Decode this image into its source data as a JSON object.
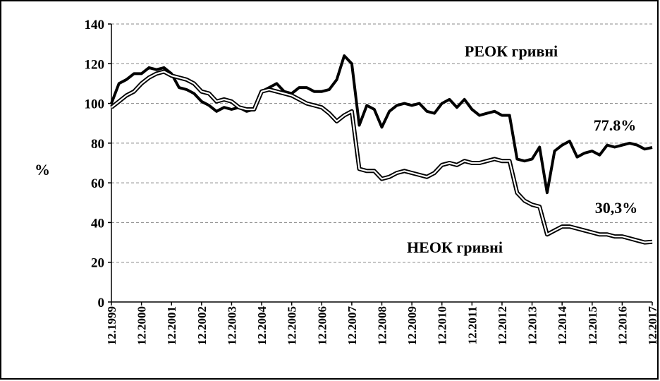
{
  "chart_data": {
    "type": "line",
    "y_label": "%",
    "annotations": [
      "РЕОК гривні",
      "НЕОК гривні",
      "77.8%",
      "30,3%"
    ],
    "categories": [
      "12.1999",
      "03.2000",
      "06.2000",
      "09.2000",
      "12.2000",
      "03.2001",
      "06.2001",
      "09.2001",
      "12.2001",
      "03.2002",
      "06.2002",
      "09.2002",
      "12.2002",
      "03.2003",
      "06.2003",
      "09.2003",
      "12.2003",
      "03.2004",
      "06.2004",
      "09.2004",
      "12.2004",
      "03.2005",
      "06.2005",
      "09.2005",
      "12.2005",
      "03.2006",
      "06.2006",
      "09.2006",
      "12.2006",
      "03.2007",
      "06.2007",
      "09.2007",
      "12.2007",
      "03.2008",
      "06.2008",
      "09.2008",
      "12.2008",
      "03.2009",
      "06.2009",
      "09.2009",
      "12.2009",
      "03.2010",
      "06.2010",
      "09.2010",
      "12.2010",
      "03.2011",
      "06.2011",
      "09.2011",
      "12.2011",
      "03.2012",
      "06.2012",
      "09.2012",
      "12.2012",
      "03.2013",
      "06.2013",
      "09.2013",
      "12.2013",
      "03.2014",
      "06.2014",
      "09.2014",
      "12.2014",
      "03.2015",
      "06.2015",
      "09.2015",
      "12.2015",
      "03.2016",
      "06.2016",
      "09.2016",
      "12.2016",
      "03.2017",
      "06.2017",
      "09.2017",
      "12.2017"
    ],
    "xticks": [
      "12.1999",
      "12.2000",
      "12.2001",
      "12.2002",
      "12.2003",
      "12.2004",
      "12.2005",
      "12.2006",
      "12.2007",
      "12.2008",
      "12.2009",
      "12.2010",
      "12.2011",
      "12.2012",
      "12.2013",
      "12.2014",
      "12.2015",
      "12.2016",
      "12.2017"
    ],
    "series": [
      {
        "name": "РЕОК гривні",
        "color": "#000000",
        "style": "solid",
        "values": [
          100,
          110,
          112,
          115,
          115,
          118,
          117,
          118,
          115,
          108,
          107,
          105,
          101,
          99,
          96,
          98,
          97,
          98,
          96,
          97,
          106,
          108,
          110,
          106,
          105,
          108,
          108,
          106,
          106,
          107,
          112,
          124,
          120,
          89,
          99,
          97,
          88,
          96,
          99,
          100,
          99,
          100,
          96,
          95,
          100,
          102,
          98,
          102,
          97,
          94,
          95,
          96,
          94,
          94,
          72,
          71,
          72,
          78,
          55,
          76,
          79,
          81,
          73,
          75,
          76,
          74,
          79,
          78,
          79,
          80,
          79,
          77,
          77.8
        ]
      },
      {
        "name": "НЕОК гривні",
        "color": "#000000",
        "style": "double",
        "values": [
          98,
          101,
          104,
          106,
          110,
          113,
          115,
          116,
          114,
          113,
          112,
          110,
          106,
          105,
          101,
          102,
          101,
          98,
          97,
          97,
          106,
          107,
          106,
          105,
          104,
          102,
          100,
          99,
          98,
          95,
          91,
          94,
          96,
          67,
          66,
          66,
          62,
          63,
          65,
          66,
          65,
          64,
          63,
          65,
          69,
          70,
          69,
          71,
          70,
          70,
          71,
          72,
          71,
          71,
          55,
          51,
          49,
          48,
          34,
          36,
          38,
          38,
          37,
          36,
          35,
          34,
          34,
          33,
          33,
          32,
          31,
          30,
          30.3
        ]
      }
    ],
    "ylim": [
      0,
      140
    ],
    "yticks": [
      0,
      20,
      40,
      60,
      80,
      100,
      120,
      140
    ],
    "grid": true
  }
}
